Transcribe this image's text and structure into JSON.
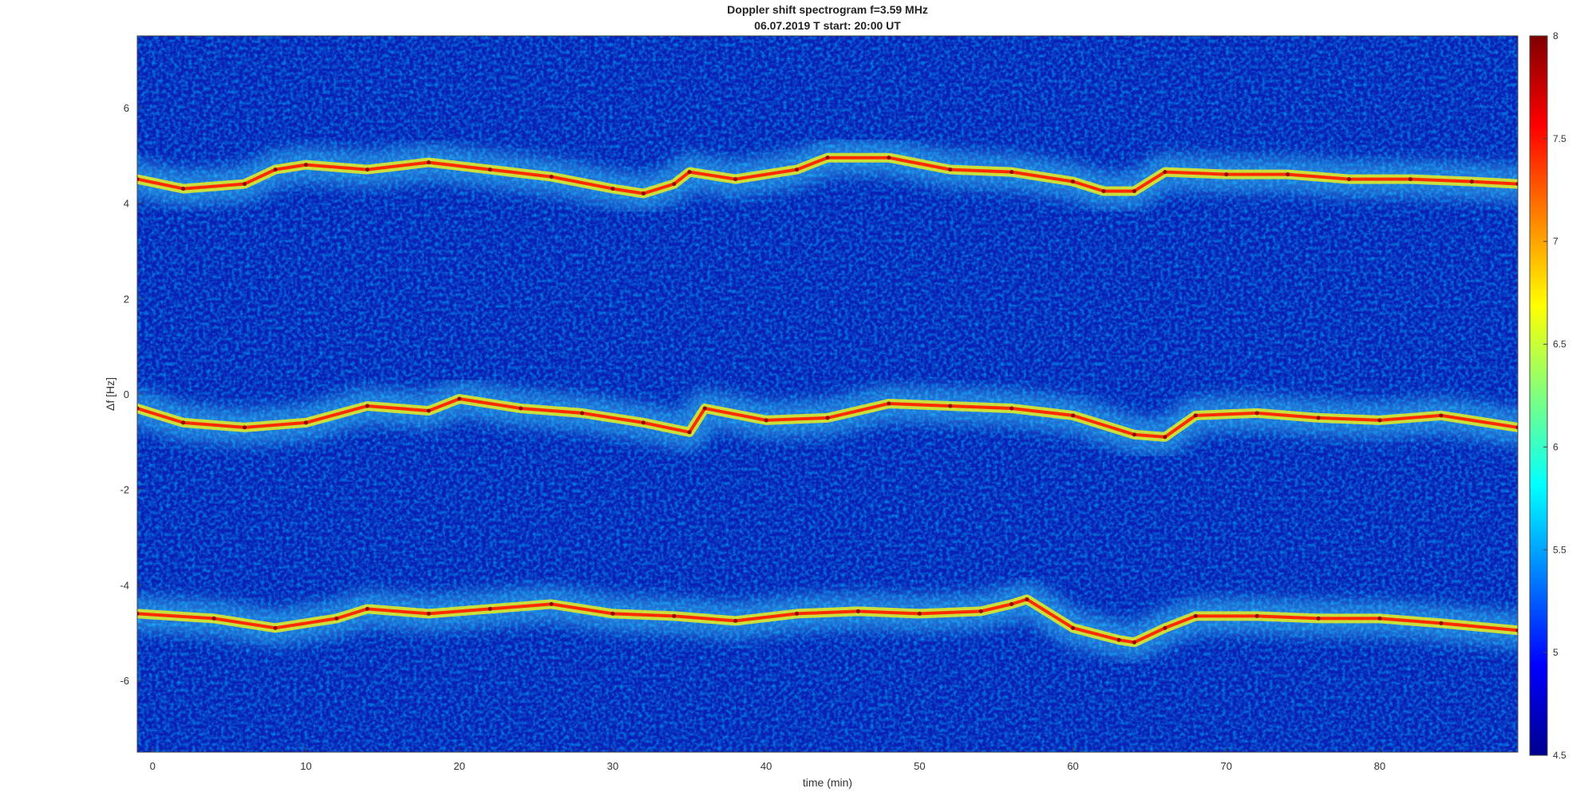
{
  "chart_data": {
    "type": "heatmap",
    "title": "Doppler shift spectrogram f=3.59 MHz",
    "subtitle": "06.07.2019   T start: 20:00 UT",
    "xlabel": "time (min)",
    "ylabel": "Δf [Hz]",
    "xlim": [
      -1,
      89
    ],
    "ylim": [
      -7.5,
      7.5
    ],
    "xticks": [
      0,
      10,
      20,
      30,
      40,
      50,
      60,
      70,
      80
    ],
    "xtick_labels": [
      "0",
      "10",
      "20",
      "30",
      "40",
      "50",
      "60",
      "70",
      "80"
    ],
    "yticks": [
      6,
      4,
      2,
      0,
      -2,
      -4,
      -6
    ],
    "ytick_labels": [
      "6",
      "4",
      "2",
      "0",
      "-2",
      "-4",
      "-6"
    ],
    "colormap": "jet",
    "clim": [
      4.5,
      8
    ],
    "colorbar_ticks": [
      8,
      7.5,
      7,
      6.5,
      6,
      5.5,
      5,
      4.5
    ],
    "colorbar_tick_labels": [
      "8",
      "7.5",
      "7",
      "6.5",
      "6",
      "5.5",
      "5",
      "4.5"
    ],
    "series": [
      {
        "time_min": [
          -1,
          2,
          6,
          8,
          10,
          14,
          18,
          22,
          26,
          30,
          32,
          34,
          35,
          38,
          42,
          44,
          48,
          52,
          56,
          60,
          62,
          64,
          66,
          70,
          74,
          78,
          82,
          86,
          89
        ],
        "doppler_hz": [
          4.5,
          4.3,
          4.4,
          4.7,
          4.8,
          4.7,
          4.85,
          4.7,
          4.55,
          4.3,
          4.2,
          4.4,
          4.65,
          4.5,
          4.7,
          4.95,
          4.95,
          4.7,
          4.65,
          4.45,
          4.25,
          4.25,
          4.65,
          4.6,
          4.6,
          4.5,
          4.5,
          4.45,
          4.4
        ]
      },
      {
        "time_min": [
          -1,
          2,
          6,
          10,
          14,
          18,
          20,
          24,
          28,
          32,
          35,
          36,
          40,
          44,
          48,
          52,
          56,
          60,
          64,
          66,
          68,
          72,
          76,
          80,
          84,
          89
        ],
        "doppler_hz": [
          -0.3,
          -0.6,
          -0.7,
          -0.6,
          -0.25,
          -0.35,
          -0.1,
          -0.3,
          -0.4,
          -0.6,
          -0.8,
          -0.3,
          -0.55,
          -0.5,
          -0.2,
          -0.25,
          -0.3,
          -0.45,
          -0.85,
          -0.9,
          -0.45,
          -0.4,
          -0.5,
          -0.55,
          -0.45,
          -0.7
        ]
      },
      {
        "time_min": [
          -1,
          4,
          8,
          12,
          14,
          18,
          22,
          26,
          30,
          34,
          38,
          42,
          46,
          50,
          54,
          56,
          57,
          60,
          63,
          64,
          66,
          68,
          72,
          76,
          80,
          84,
          89
        ],
        "doppler_hz": [
          -4.6,
          -4.7,
          -4.9,
          -4.7,
          -4.5,
          -4.6,
          -4.5,
          -4.4,
          -4.6,
          -4.65,
          -4.75,
          -4.6,
          -4.55,
          -4.6,
          -4.55,
          -4.4,
          -4.3,
          -4.9,
          -5.15,
          -5.2,
          -4.9,
          -4.65,
          -4.65,
          -4.7,
          -4.7,
          -4.8,
          -4.95
        ]
      }
    ]
  }
}
